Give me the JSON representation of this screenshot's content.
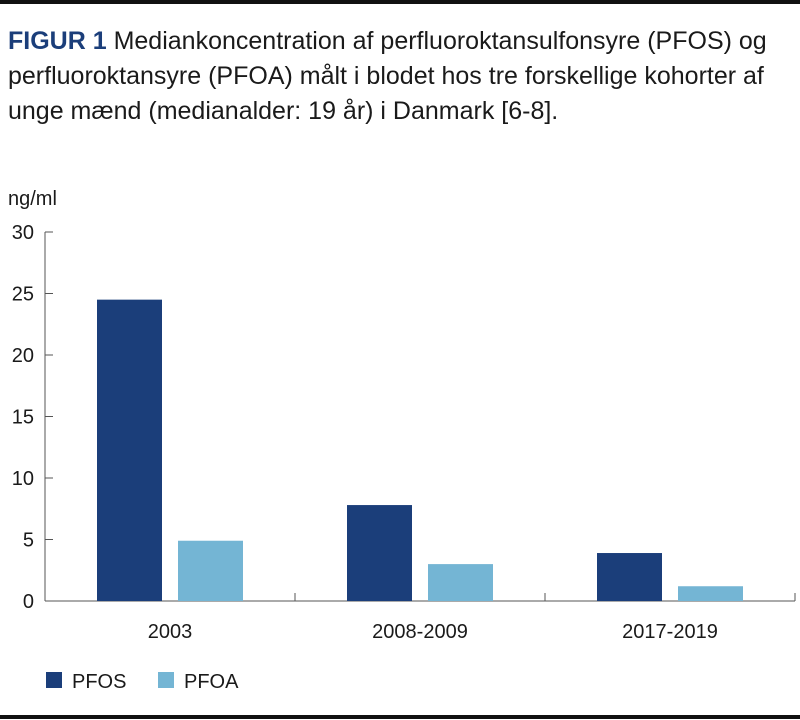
{
  "figure": {
    "label": "FIGUR 1",
    "caption": "Mediankoncentration af perfluoroktansulfonsyre (PFOS) og perfluoroktansyre (PFOA) målt i blodet hos tre forskellige kohorter af unge mænd (medianalder: 19 år) i Danmark [6-8]."
  },
  "chart_data": {
    "type": "bar",
    "title": "",
    "ylabel": "ng/ml",
    "xlabel": "",
    "ylim": [
      0,
      30
    ],
    "yticks": [
      0,
      5,
      10,
      15,
      20,
      25,
      30
    ],
    "categories": [
      "2003",
      "2008-2009",
      "2017-2019"
    ],
    "series": [
      {
        "name": "PFOS",
        "values": [
          24.5,
          7.8,
          3.9
        ],
        "color": "#1b3e7a"
      },
      {
        "name": "PFOA",
        "values": [
          4.9,
          3.0,
          1.2
        ],
        "color": "#74b5d4"
      }
    ],
    "grid": false,
    "legend_position": "bottom-left"
  }
}
